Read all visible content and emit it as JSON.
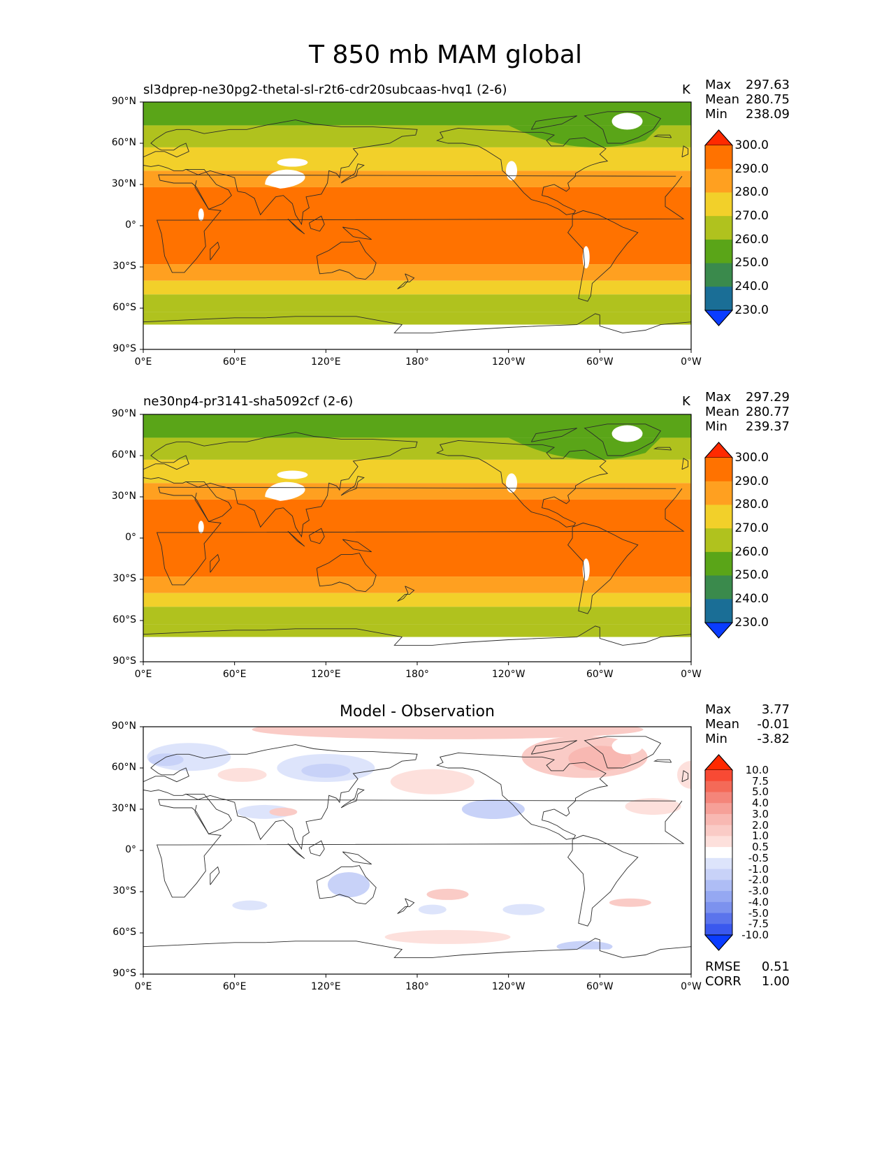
{
  "page": {
    "title": "T 850 mb MAM global"
  },
  "panels": [
    {
      "title": "sl3dprep-ne30pg2-thetal-sl-r2t6-cdr20subcaas-hvq1 (2-6)",
      "units": "K",
      "stats": [
        {
          "label": "Max",
          "value": "297.63"
        },
        {
          "label": "Mean",
          "value": "280.75"
        },
        {
          "label": "Min",
          "value": "238.09"
        }
      ]
    },
    {
      "title": "ne30np4-pr3141-sha5092cf (2-6)",
      "units": "K",
      "stats": [
        {
          "label": "Max",
          "value": "297.29"
        },
        {
          "label": "Mean",
          "value": "280.77"
        },
        {
          "label": "Min",
          "value": "239.37"
        }
      ]
    },
    {
      "title": "Model - Observation",
      "units": "",
      "stats": [
        {
          "label": "Max",
          "value": "3.77"
        },
        {
          "label": "Mean",
          "value": "-0.01"
        },
        {
          "label": "Min",
          "value": "-3.82"
        }
      ],
      "metrics": [
        {
          "label": "RMSE",
          "value": "0.51"
        },
        {
          "label": "CORR",
          "value": "1.00"
        }
      ]
    }
  ],
  "axes": {
    "lat_ticks": [
      "90°N",
      "60°N",
      "30°N",
      "0°",
      "30°S",
      "60°S",
      "90°S"
    ],
    "lon_ticks": [
      "0°E",
      "60°E",
      "120°E",
      "180°",
      "120°W",
      "60°W",
      "0°W"
    ]
  },
  "colorbars": {
    "temperature": {
      "labels": [
        "300.0",
        "290.0",
        "280.0",
        "270.0",
        "260.0",
        "250.0",
        "240.0",
        "230.0"
      ],
      "colors": [
        "#ff2a00",
        "#ff7200",
        "#ffa020",
        "#f2d02a",
        "#b0c21e",
        "#5aa518",
        "#3a8a4c",
        "#1a6e96",
        "#0a3cff"
      ]
    },
    "difference": {
      "labels": [
        "10.0",
        "7.5",
        "5.0",
        "4.0",
        "3.0",
        "2.0",
        "1.0",
        "0.5",
        "-0.5",
        "-1.0",
        "-2.0",
        "-3.0",
        "-4.0",
        "-5.0",
        "-7.5",
        "-10.0"
      ],
      "colors": [
        "#ff2a00",
        "#f84a34",
        "#f46a58",
        "#f4857a",
        "#f6a098",
        "#f8b8b2",
        "#facbc6",
        "#fde0dc",
        "#ffffff",
        "#dde4fb",
        "#c8d2f8",
        "#aebdf5",
        "#95a8f2",
        "#7c92ee",
        "#5b74ec",
        "#3a58ee",
        "#0a3cff"
      ]
    }
  },
  "chart_data": {
    "type": "heatmap",
    "variable": "T 850 mb",
    "season": "MAM",
    "units": "K",
    "x_range": [
      0,
      360
    ],
    "y_range": [
      -90,
      90
    ],
    "panels": [
      {
        "name": "sl3dprep-ne30pg2-thetal-sl-r2t6-cdr20subcaas-hvq1 (2-6)",
        "max": 297.63,
        "mean": 280.75,
        "min": 238.09
      },
      {
        "name": "ne30np4-pr3141-sha5092cf (2-6)",
        "max": 297.29,
        "mean": 280.77,
        "min": 239.37
      },
      {
        "name": "Model - Observation",
        "max": 3.77,
        "mean": -0.01,
        "min": -3.82,
        "rmse": 0.51,
        "corr": 1.0
      }
    ]
  }
}
